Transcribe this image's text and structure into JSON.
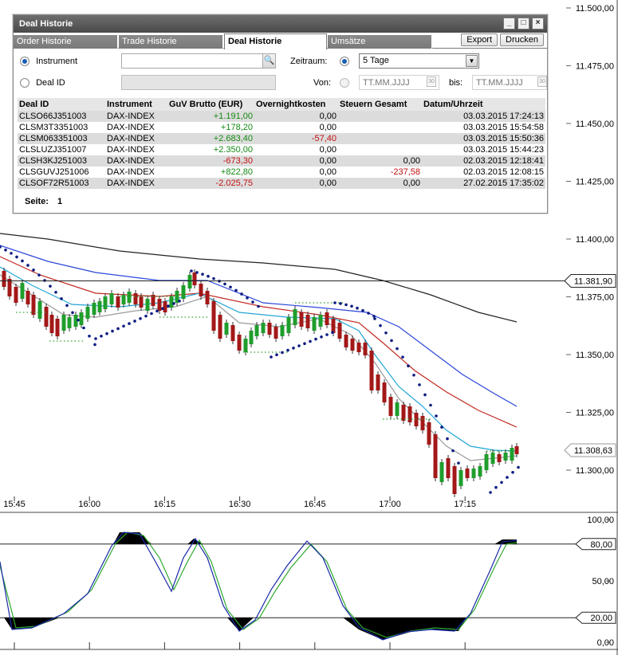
{
  "price_axis": {
    "ticks": [
      "11.500,00",
      "11.475,00",
      "11.450,00",
      "11.425,00",
      "11.400,00",
      "11.375,00",
      "11.350,00",
      "11.325,00",
      "11.300,00"
    ],
    "markers": [
      {
        "label": "11.381,90",
        "value": 11381.9
      },
      {
        "label": "11.308,63",
        "value": 11308.63
      }
    ]
  },
  "time_axis": [
    "15:45",
    "16:00",
    "16:15",
    "16:30",
    "16:45",
    "17:00",
    "17:15"
  ],
  "oscillator_axis": {
    "ticks": [
      "100,00",
      "50,00",
      "0,00"
    ],
    "markers": [
      "80,00",
      "20,00"
    ]
  },
  "colors": {
    "up_candle": "#1f9e2c",
    "down_candle": "#a31818",
    "sar_dots": "#0a1a80",
    "ma_black": "#222222",
    "ma_blue": "#2b46d9",
    "ma_red": "#c0281f",
    "ma_cyan": "#22a6d6",
    "ma_gray": "#9a9a9a",
    "stoch_k": "#1a2aa8",
    "stoch_d": "#2fa82f"
  },
  "dialog": {
    "title": "Deal Historie",
    "window_buttons": {
      "minimize": "_",
      "maximize": "□",
      "close": "×"
    },
    "tabs": [
      {
        "label": "Order Historie",
        "active": false
      },
      {
        "label": "Trade Historie",
        "active": false
      },
      {
        "label": "Deal Historie",
        "active": true
      },
      {
        "label": "Umsätze",
        "active": false
      }
    ],
    "export_label": "Export",
    "print_label": "Drucken",
    "filter": {
      "instrument_label": "Instrument",
      "instrument_value": "",
      "dealid_label": "Deal ID",
      "dealid_value": "",
      "zeitraum_label": "Zeitraum:",
      "zeitraum_value": "5 Tage",
      "von_label": "Von:",
      "von_placeholder": "TT.MM.JJJJ",
      "bis_label": "bis:",
      "bis_placeholder": "TT.MM.JJJJ"
    },
    "table": {
      "columns": [
        "Deal ID",
        "Instrument",
        "GuV Brutto (EUR)",
        "Overnightkosten",
        "Steuern Gesamt",
        "Datum/Uhrzeit"
      ],
      "rows": [
        {
          "id": "CLSO66J351003",
          "instrument": "DAX-INDEX",
          "guv": "+1.191,00",
          "overnight": "0,00",
          "steuern": "",
          "datum": "03.03.2015 17:24:13"
        },
        {
          "id": "CLSM3T3351003",
          "instrument": "DAX-INDEX",
          "guv": "+178,20",
          "overnight": "0,00",
          "steuern": "",
          "datum": "03.03.2015 15:54:58"
        },
        {
          "id": "CLSM063351003",
          "instrument": "DAX-INDEX",
          "guv": "+2.683,40",
          "overnight": "-57,40",
          "steuern": "",
          "datum": "03.03.2015 15:50:36"
        },
        {
          "id": "CLSLUZJ351007",
          "instrument": "DAX-INDEX",
          "guv": "+2.350,00",
          "overnight": "0,00",
          "steuern": "",
          "datum": "03.03.2015 15:44:23"
        },
        {
          "id": "CLSH3KJ251003",
          "instrument": "DAX-INDEX",
          "guv": "-673,30",
          "overnight": "0,00",
          "steuern": "0,00",
          "datum": "02.03.2015 12:18:41"
        },
        {
          "id": "CLSGUVJ251006",
          "instrument": "DAX-INDEX",
          "guv": "+822,80",
          "overnight": "0,00",
          "steuern": "-237,58",
          "datum": "02.03.2015 12:08:15"
        },
        {
          "id": "CLSOF72R51003",
          "instrument": "DAX-INDEX",
          "guv": "-2.025,75",
          "overnight": "0,00",
          "steuern": "0,00",
          "datum": "27.02.2015 17:35:02"
        }
      ]
    },
    "page_label": "Seite:",
    "page_value": "1"
  }
}
